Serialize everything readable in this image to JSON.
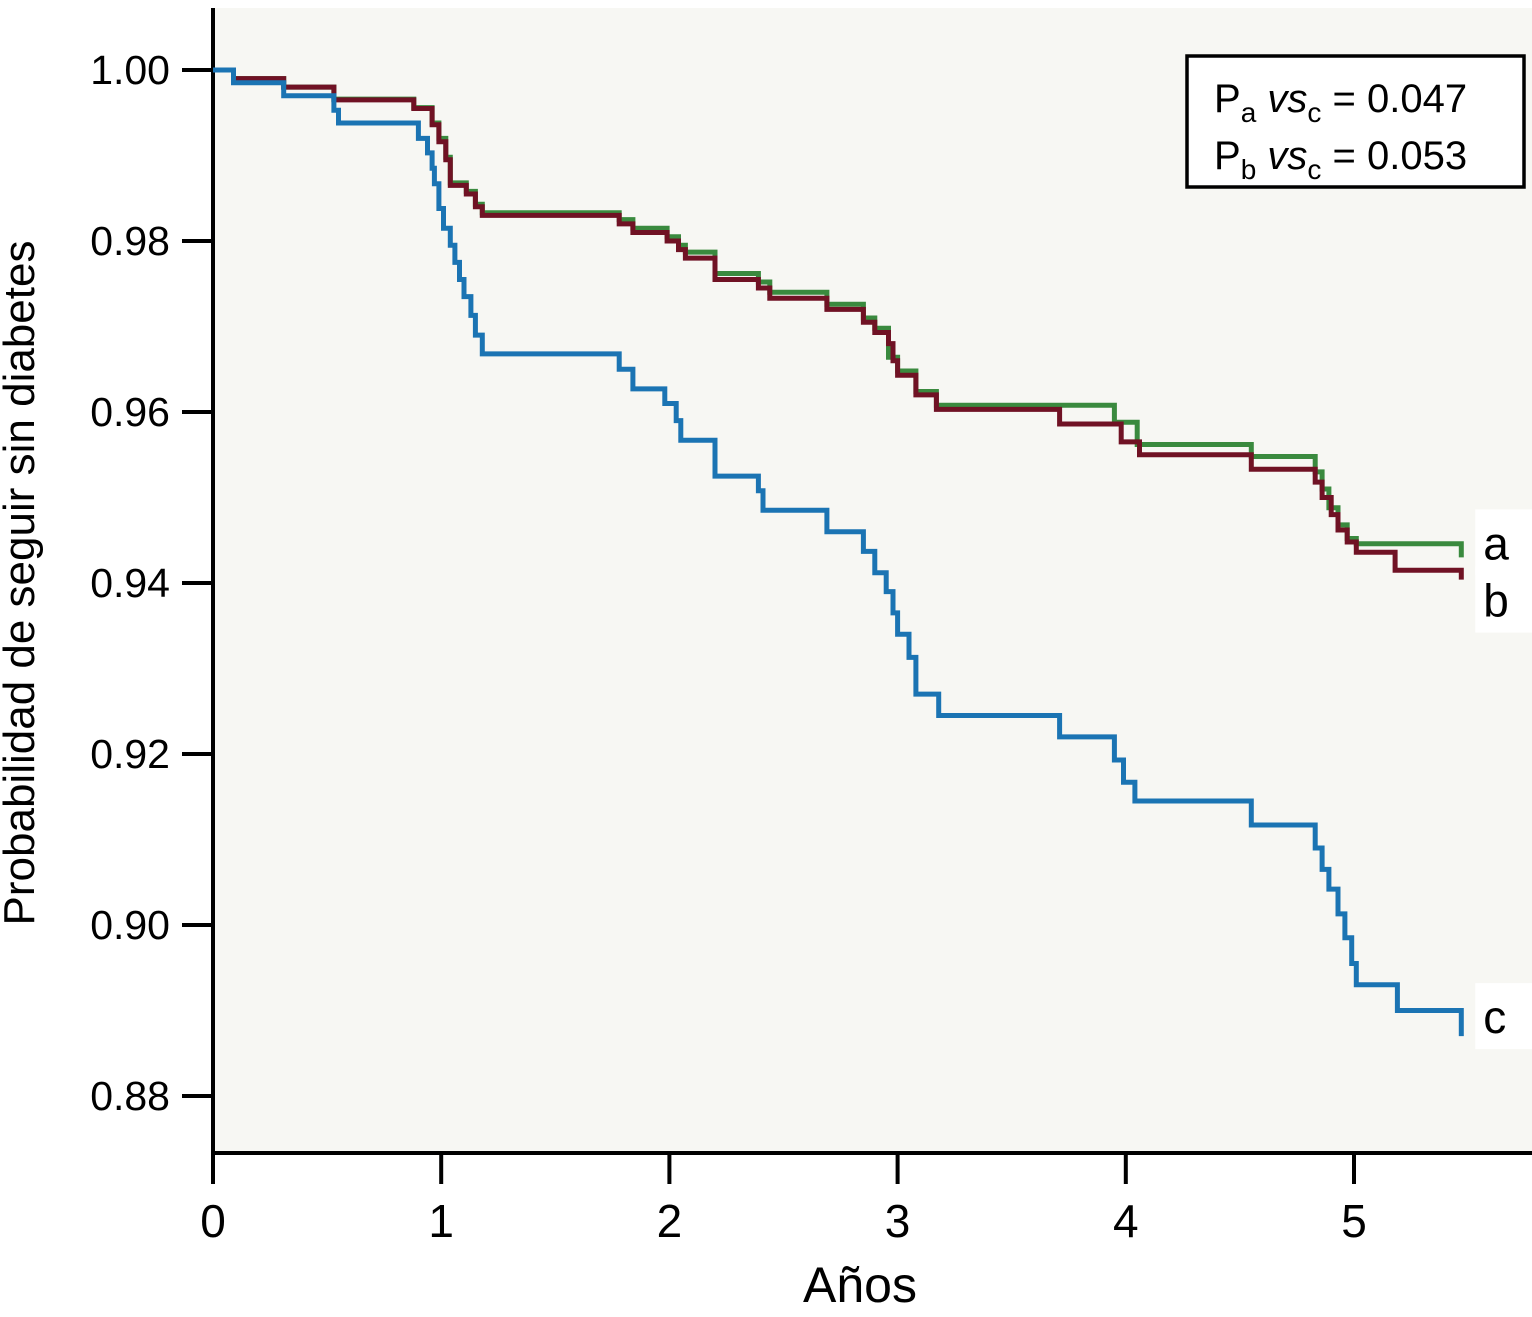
{
  "figure": {
    "title": "",
    "x_axis_label": "Años",
    "y_axis_label": "Probabilidad de seguir sin diabetes"
  },
  "legend": {
    "lines": [
      {
        "parts": [
          {
            "text": "P",
            "style": "normal"
          },
          {
            "text": "a",
            "style": "sub"
          },
          {
            "text": " vs",
            "style": "italic"
          },
          {
            "text": "c",
            "style": "sub"
          },
          {
            "text": " = 0.047",
            "style": "normal"
          }
        ],
        "plain": "Pa vsc = 0.047"
      },
      {
        "parts": [
          {
            "text": "P",
            "style": "normal"
          },
          {
            "text": "b",
            "style": "sub"
          },
          {
            "text": " vs",
            "style": "italic"
          },
          {
            "text": "c",
            "style": "sub"
          },
          {
            "text": " = 0.053",
            "style": "normal"
          }
        ],
        "plain": "Pb vsc = 0.053"
      }
    ]
  },
  "colors": {
    "axis": "#000000",
    "plot_background": "#f7f7f3",
    "page_background": "#ffffff",
    "series_a": "#3a8a3e",
    "series_b": "#701224",
    "series_c": "#1b74b3"
  },
  "chart_data": {
    "type": "line",
    "subtype": "kaplan-meier-step",
    "title": "",
    "xlabel": "Años",
    "ylabel": "Probabilidad de seguir sin diabetes",
    "xlim": [
      0,
      5.78
    ],
    "ylim": [
      0.872,
      1.007
    ],
    "x_ticks": [
      0,
      1,
      2,
      3,
      4,
      5
    ],
    "x_tick_labels": [
      "0",
      "1",
      "2",
      "3",
      "4",
      "5"
    ],
    "y_ticks": [
      1.0,
      0.98,
      0.96,
      0.94,
      0.92,
      0.9,
      0.88
    ],
    "y_tick_labels": [
      "1.00",
      "0.98",
      "0.96",
      "0.94",
      "0.92",
      "0.90",
      "0.88"
    ],
    "grid": false,
    "legend_position": "top-right",
    "p_values": [
      {
        "comparison": "a vs c",
        "p": 0.047
      },
      {
        "comparison": "b vs c",
        "p": 0.053
      }
    ],
    "series": [
      {
        "name": "a",
        "color": "#3a8a3e",
        "step_points": [
          [
            0,
            1.0
          ],
          [
            0.09,
            0.999
          ],
          [
            0.31,
            0.998
          ],
          [
            0.53,
            0.9966
          ],
          [
            0.88,
            0.9956
          ],
          [
            0.96,
            0.9938
          ],
          [
            0.99,
            0.992
          ],
          [
            1.02,
            0.9898
          ],
          [
            1.04,
            0.9868
          ],
          [
            1.11,
            0.9858
          ],
          [
            1.15,
            0.9843
          ],
          [
            1.18,
            0.9833
          ],
          [
            1.78,
            0.9825
          ],
          [
            1.84,
            0.9815
          ],
          [
            1.99,
            0.9805
          ],
          [
            2.04,
            0.9795
          ],
          [
            2.07,
            0.9787
          ],
          [
            2.2,
            0.9762
          ],
          [
            2.39,
            0.9752
          ],
          [
            2.44,
            0.974
          ],
          [
            2.69,
            0.9726
          ],
          [
            2.85,
            0.971
          ],
          [
            2.9,
            0.9698
          ],
          [
            2.96,
            0.9664
          ],
          [
            3.0,
            0.9648
          ],
          [
            3.08,
            0.9624
          ],
          [
            3.17,
            0.9608
          ],
          [
            3.95,
            0.9588
          ],
          [
            4.05,
            0.9562
          ],
          [
            4.55,
            0.9548
          ],
          [
            4.83,
            0.953
          ],
          [
            4.86,
            0.951
          ],
          [
            4.89,
            0.9488
          ],
          [
            4.93,
            0.9468
          ],
          [
            4.97,
            0.9452
          ],
          [
            5.01,
            0.9446
          ],
          [
            5.47,
            0.943
          ]
        ]
      },
      {
        "name": "b",
        "color": "#701224",
        "step_points": [
          [
            0,
            1.0
          ],
          [
            0.09,
            0.999
          ],
          [
            0.31,
            0.998
          ],
          [
            0.53,
            0.9965
          ],
          [
            0.88,
            0.9955
          ],
          [
            0.96,
            0.9936
          ],
          [
            0.99,
            0.9916
          ],
          [
            1.02,
            0.9895
          ],
          [
            1.04,
            0.9865
          ],
          [
            1.11,
            0.9855
          ],
          [
            1.15,
            0.984
          ],
          [
            1.18,
            0.983
          ],
          [
            1.78,
            0.982
          ],
          [
            1.84,
            0.981
          ],
          [
            1.99,
            0.98
          ],
          [
            2.04,
            0.979
          ],
          [
            2.07,
            0.978
          ],
          [
            2.2,
            0.9755
          ],
          [
            2.39,
            0.9745
          ],
          [
            2.44,
            0.9733
          ],
          [
            2.69,
            0.972
          ],
          [
            2.85,
            0.9705
          ],
          [
            2.9,
            0.9693
          ],
          [
            2.96,
            0.968
          ],
          [
            2.98,
            0.966
          ],
          [
            3.0,
            0.9643
          ],
          [
            3.08,
            0.962
          ],
          [
            3.17,
            0.9603
          ],
          [
            3.71,
            0.9586
          ],
          [
            3.98,
            0.9565
          ],
          [
            4.06,
            0.955
          ],
          [
            4.55,
            0.9533
          ],
          [
            4.83,
            0.9518
          ],
          [
            4.86,
            0.95
          ],
          [
            4.9,
            0.948
          ],
          [
            4.93,
            0.9462
          ],
          [
            4.97,
            0.9448
          ],
          [
            5.01,
            0.9436
          ],
          [
            5.18,
            0.9415
          ],
          [
            5.47,
            0.9404
          ]
        ]
      },
      {
        "name": "c",
        "color": "#1b74b3",
        "step_points": [
          [
            0,
            1.0
          ],
          [
            0.09,
            0.9985
          ],
          [
            0.31,
            0.997
          ],
          [
            0.53,
            0.9953
          ],
          [
            0.55,
            0.9938
          ],
          [
            0.9,
            0.992
          ],
          [
            0.94,
            0.9903
          ],
          [
            0.96,
            0.9885
          ],
          [
            0.97,
            0.9867
          ],
          [
            0.99,
            0.9838
          ],
          [
            1.01,
            0.9815
          ],
          [
            1.04,
            0.9795
          ],
          [
            1.06,
            0.9775
          ],
          [
            1.08,
            0.9755
          ],
          [
            1.1,
            0.9735
          ],
          [
            1.13,
            0.9713
          ],
          [
            1.15,
            0.969
          ],
          [
            1.18,
            0.9668
          ],
          [
            1.78,
            0.965
          ],
          [
            1.84,
            0.9627
          ],
          [
            1.98,
            0.961
          ],
          [
            2.03,
            0.959
          ],
          [
            2.05,
            0.9567
          ],
          [
            2.2,
            0.9525
          ],
          [
            2.39,
            0.9508
          ],
          [
            2.41,
            0.9485
          ],
          [
            2.69,
            0.946
          ],
          [
            2.85,
            0.9437
          ],
          [
            2.9,
            0.9412
          ],
          [
            2.95,
            0.939
          ],
          [
            2.98,
            0.9365
          ],
          [
            3.0,
            0.934
          ],
          [
            3.05,
            0.9313
          ],
          [
            3.08,
            0.927
          ],
          [
            3.18,
            0.9245
          ],
          [
            3.71,
            0.922
          ],
          [
            3.95,
            0.9193
          ],
          [
            3.99,
            0.9167
          ],
          [
            4.04,
            0.9145
          ],
          [
            4.55,
            0.9117
          ],
          [
            4.83,
            0.909
          ],
          [
            4.86,
            0.9065
          ],
          [
            4.89,
            0.9042
          ],
          [
            4.93,
            0.9013
          ],
          [
            4.96,
            0.8985
          ],
          [
            4.99,
            0.8955
          ],
          [
            5.01,
            0.893
          ],
          [
            5.19,
            0.89
          ],
          [
            5.47,
            0.887
          ]
        ]
      }
    ]
  }
}
